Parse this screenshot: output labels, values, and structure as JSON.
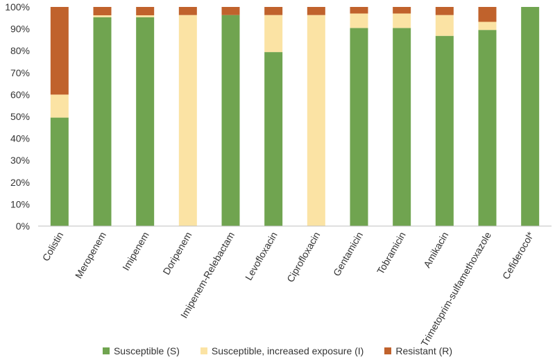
{
  "chart_data": {
    "type": "bar",
    "stacked": true,
    "title": "",
    "xlabel": "",
    "ylabel": "",
    "ylim": [
      0,
      100
    ],
    "y_ticks": [
      "0%",
      "10%",
      "20%",
      "30%",
      "40%",
      "50%",
      "60%",
      "70%",
      "80%",
      "90%",
      "100%"
    ],
    "grid": false,
    "legend_position": "bottom",
    "categories": [
      "Colistin",
      "Meropenem",
      "Imipenem",
      "Doripenem",
      "Imipenem-Relebactam",
      "Levofloxacin",
      "Ciprofloxacin",
      "Gentamicin",
      "Tobramicin",
      "Amikacin",
      "Trimetoprim-sulfamethoxazole",
      "Cefiderocol*"
    ],
    "series": [
      {
        "name": "Susceptible (S)",
        "color": "#70a450",
        "values": [
          49.5,
          95.3,
          95.3,
          0,
          96.3,
          79.4,
          0,
          90.4,
          90.4,
          86.8,
          89.5,
          100
        ]
      },
      {
        "name": "Susceptible, increased exposure (I)",
        "color": "#fbe3a4",
        "values": [
          10.5,
          0.9,
          0.9,
          96.3,
          0,
          16.9,
          96.3,
          6.6,
          6.6,
          9.5,
          3.7,
          0
        ]
      },
      {
        "name": "Resistant (R)",
        "color": "#c0622c",
        "values": [
          40.0,
          3.8,
          3.8,
          3.7,
          3.7,
          3.7,
          3.7,
          3.0,
          3.0,
          3.7,
          6.8,
          0
        ]
      }
    ]
  }
}
